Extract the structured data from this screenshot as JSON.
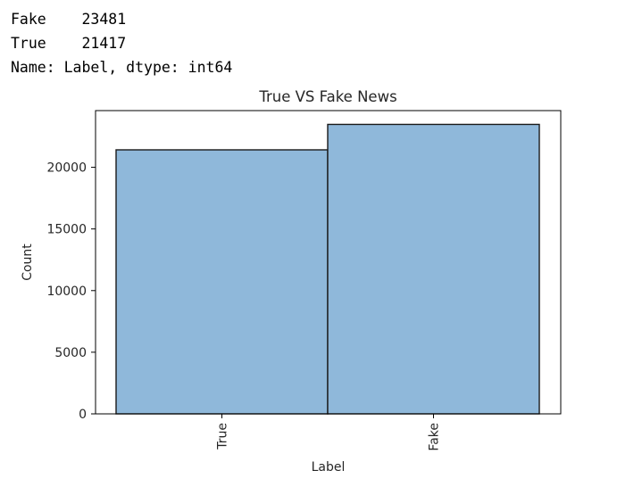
{
  "output": {
    "lines": [
      "Fake    23481",
      "True    21417",
      "Name: Label, dtype: int64"
    ]
  },
  "chart_data": {
    "type": "bar",
    "title": "True VS Fake News",
    "xlabel": "Label",
    "ylabel": "Count",
    "categories": [
      "True",
      "Fake"
    ],
    "values": [
      21417,
      23481
    ],
    "ylim": [
      0,
      24600
    ],
    "yticks": [
      0,
      5000,
      10000,
      15000,
      20000
    ],
    "grid": false,
    "colors": {
      "bar_fill": "#8fb8da",
      "bar_edge": "#1a1a1a",
      "axes_edge": "#000000",
      "text": "#262626"
    }
  }
}
